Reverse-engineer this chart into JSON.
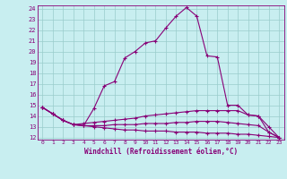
{
  "xlabel": "Windchill (Refroidissement éolien,°C)",
  "background_color": "#c8eef0",
  "grid_color": "#99cccc",
  "line_color": "#880077",
  "x_values": [
    0,
    1,
    2,
    3,
    4,
    5,
    6,
    7,
    8,
    9,
    10,
    11,
    12,
    13,
    14,
    15,
    16,
    17,
    18,
    19,
    20,
    21,
    22,
    23
  ],
  "series1": [
    14.8,
    14.2,
    13.6,
    13.2,
    13.1,
    14.7,
    16.8,
    17.2,
    19.4,
    20.0,
    20.8,
    21.0,
    22.2,
    23.3,
    24.1,
    23.3,
    19.6,
    19.5,
    15.0,
    15.0,
    14.1,
    14.0,
    12.5,
    12.0
  ],
  "series2": [
    14.8,
    14.2,
    13.6,
    13.2,
    13.3,
    13.4,
    13.5,
    13.6,
    13.7,
    13.8,
    14.0,
    14.1,
    14.2,
    14.3,
    14.4,
    14.5,
    14.5,
    14.5,
    14.5,
    14.5,
    14.1,
    14.0,
    13.0,
    12.0
  ],
  "series3": [
    14.8,
    14.2,
    13.6,
    13.2,
    13.1,
    13.1,
    13.1,
    13.2,
    13.2,
    13.2,
    13.3,
    13.3,
    13.3,
    13.4,
    13.4,
    13.5,
    13.5,
    13.5,
    13.4,
    13.3,
    13.2,
    13.1,
    12.5,
    12.0
  ],
  "series4": [
    14.8,
    14.2,
    13.6,
    13.2,
    13.1,
    13.0,
    12.9,
    12.8,
    12.7,
    12.7,
    12.6,
    12.6,
    12.6,
    12.5,
    12.5,
    12.5,
    12.4,
    12.4,
    12.4,
    12.3,
    12.3,
    12.2,
    12.1,
    12.0
  ],
  "ylim": [
    12,
    24
  ],
  "xlim": [
    0,
    23
  ],
  "yticks": [
    12,
    13,
    14,
    15,
    16,
    17,
    18,
    19,
    20,
    21,
    22,
    23,
    24
  ],
  "xticks": [
    0,
    1,
    2,
    3,
    4,
    5,
    6,
    7,
    8,
    9,
    10,
    11,
    12,
    13,
    14,
    15,
    16,
    17,
    18,
    19,
    20,
    21,
    22,
    23
  ]
}
